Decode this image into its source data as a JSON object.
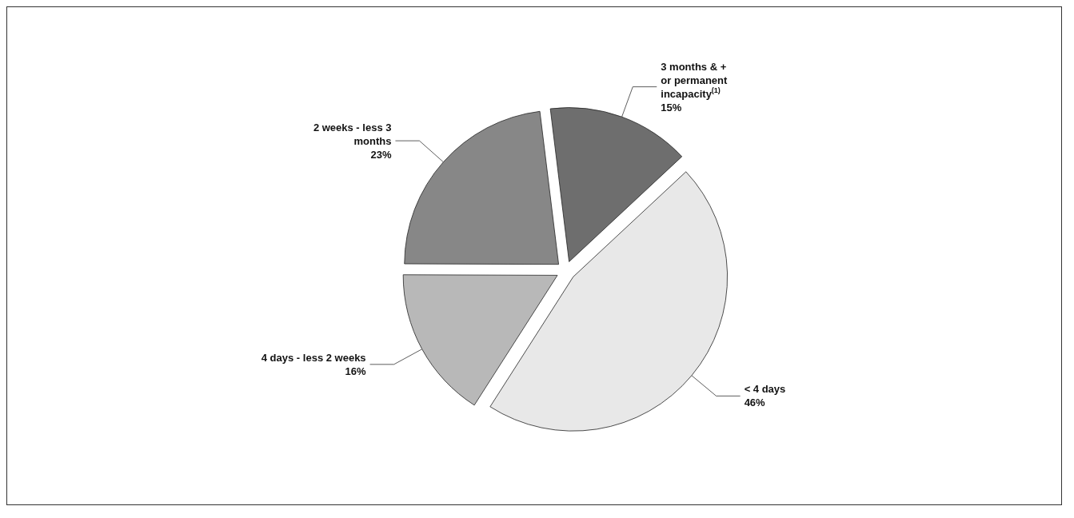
{
  "chart_data": {
    "type": "pie",
    "categories": [
      "3 months & +\nor permanent\nincapacity$^{(1)}$",
      "< 4 days",
      "4 days - less 2 weeks",
      "2 weeks - less 3\nmonths"
    ],
    "values": [
      15,
      46,
      16,
      23
    ],
    "value_labels": [
      "15%",
      "46%",
      "16%",
      "23%"
    ],
    "colors": [
      "#6e6e6e",
      "#e8e8e8",
      "#b8b8b8",
      "#878787"
    ]
  }
}
